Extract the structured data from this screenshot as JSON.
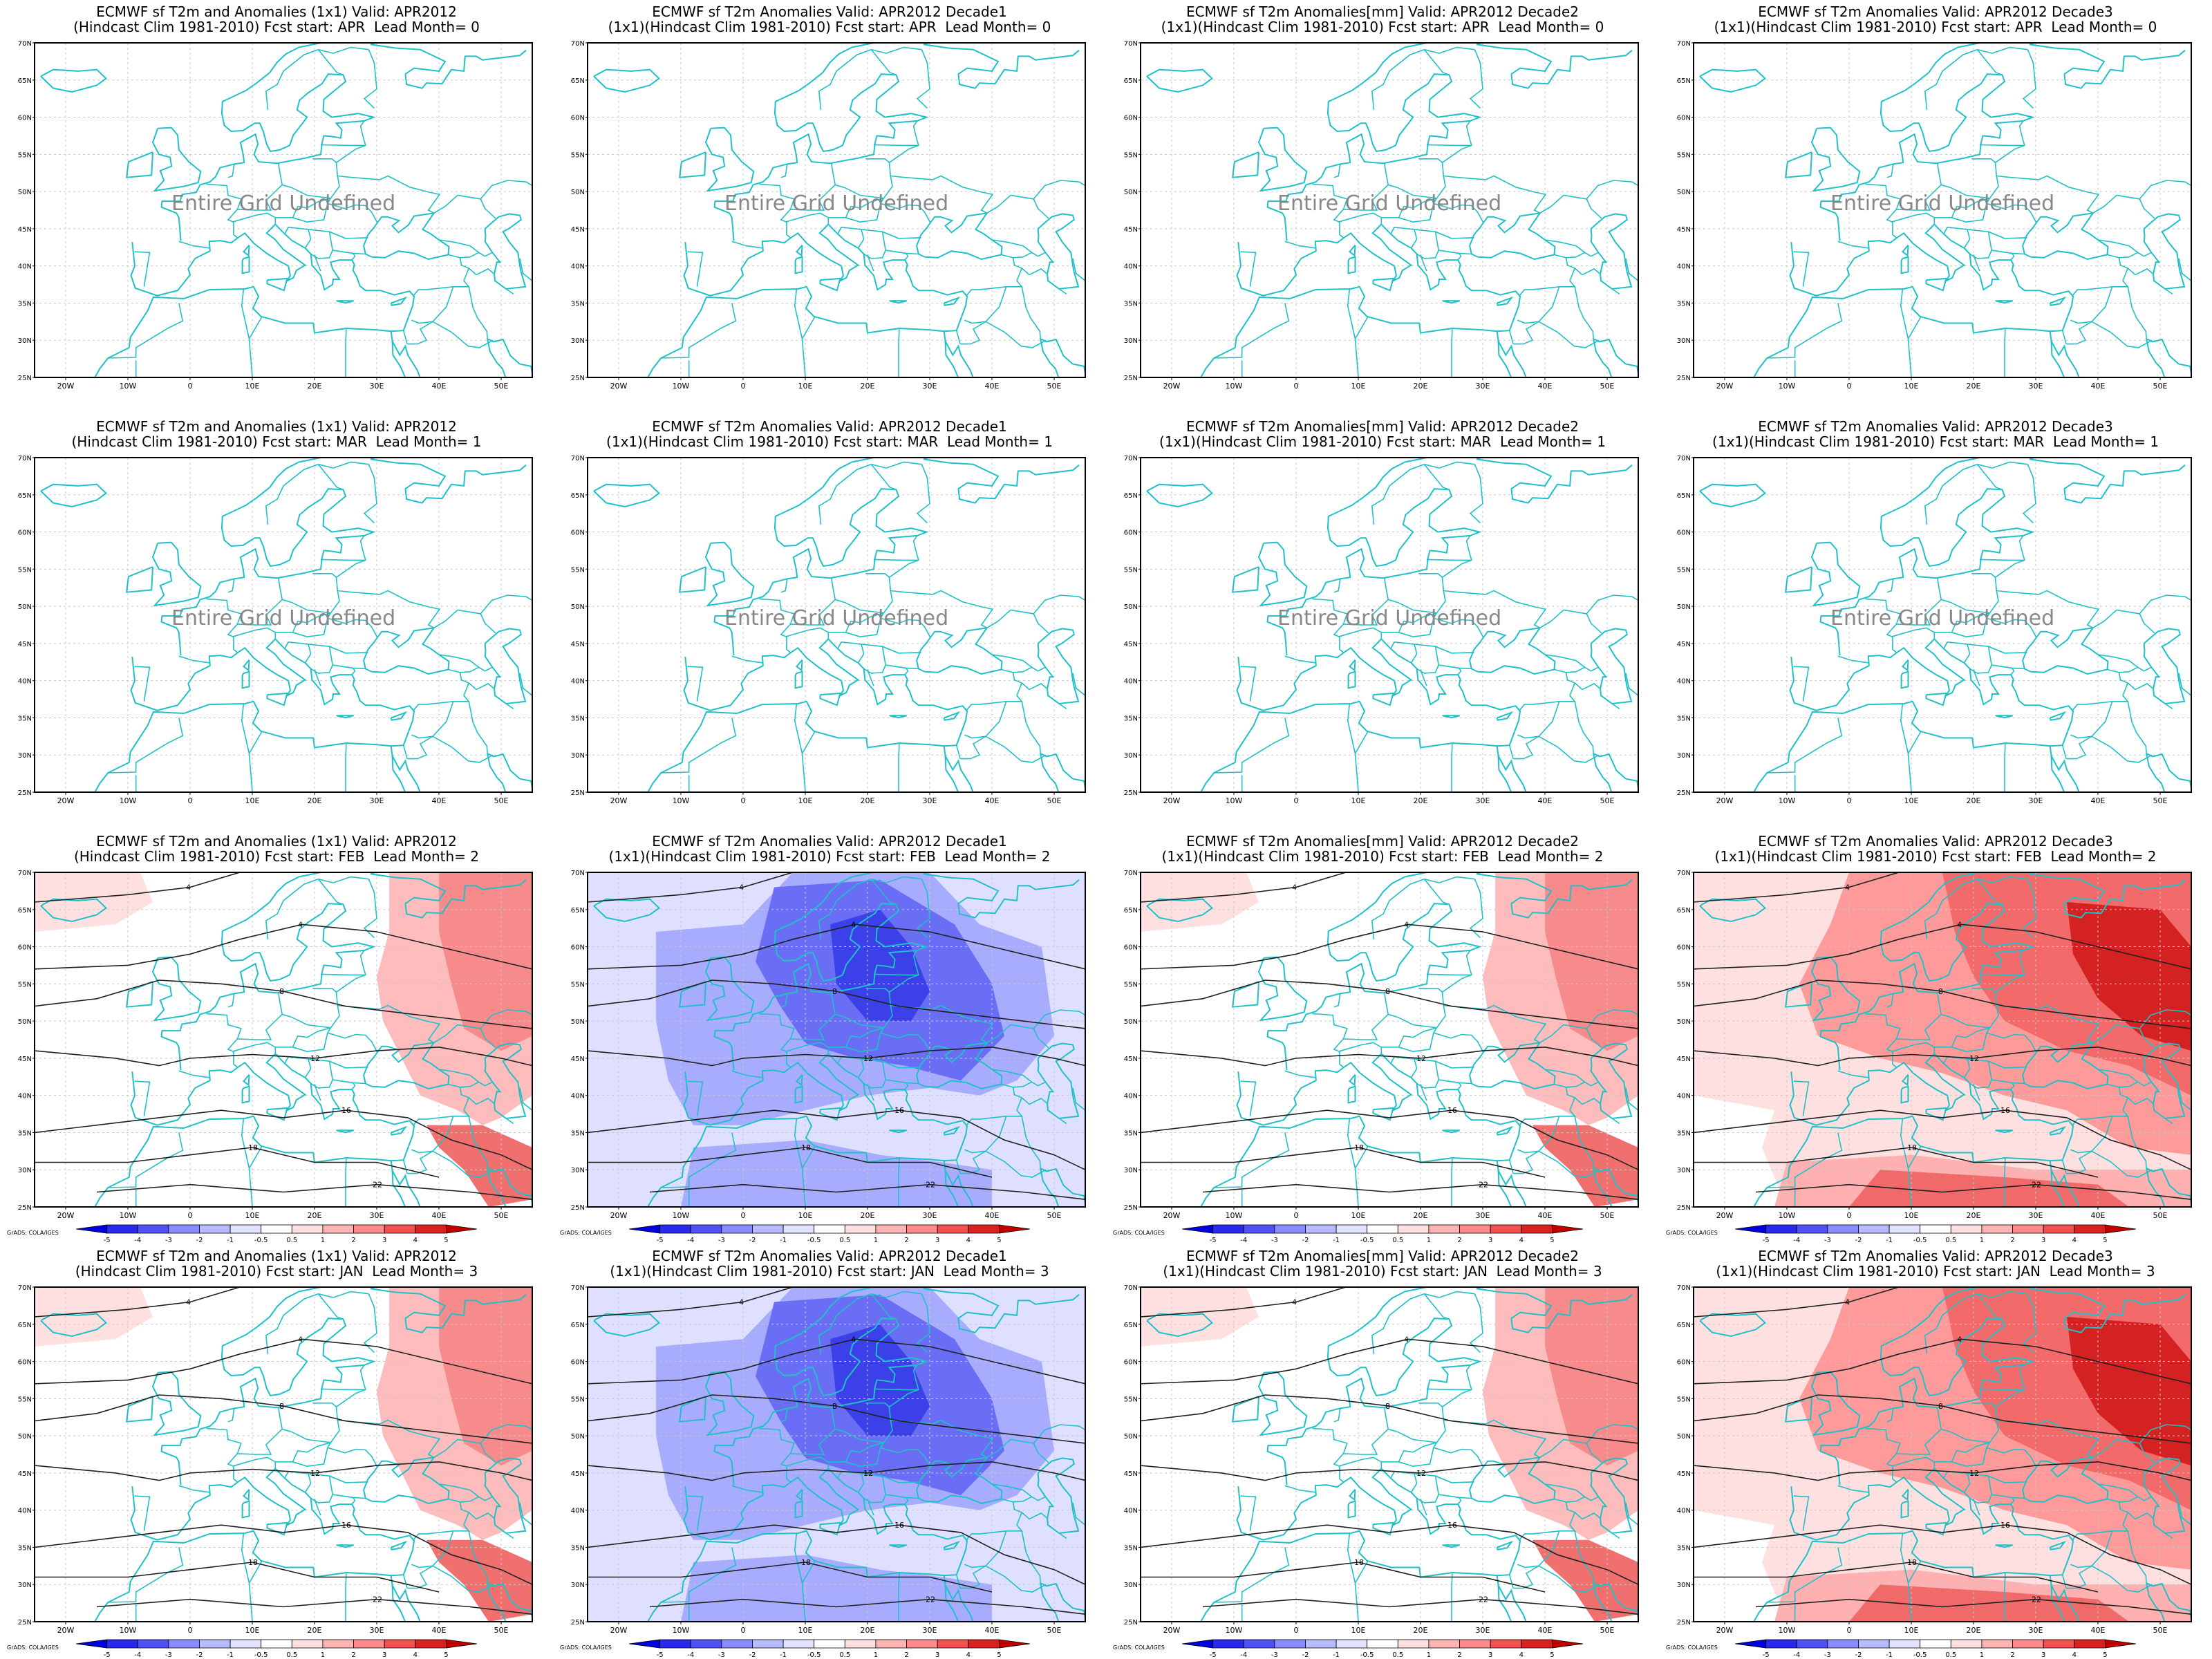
{
  "lat_labels": [
    "70N",
    "65N",
    "60N",
    "55N",
    "50N",
    "45N",
    "40N",
    "35N",
    "30N",
    "25N"
  ],
  "lon_labels": [
    "20W",
    "10W",
    "0",
    "10E",
    "20E",
    "30E",
    "40E",
    "50E"
  ],
  "undefined_text": "Entire Grid Undefined",
  "colorbar_labels": [
    "-5",
    "-4",
    "-3",
    "-2",
    "-1",
    "-0.5",
    "0.5",
    "1",
    "2",
    "3",
    "4",
    "5"
  ],
  "grads_tag": "GrADS: COLA/IGES",
  "colors": {
    "coast": "#20c0c8",
    "cold_strong": "#0000e0",
    "cold_light": "#dfe0ff",
    "warm_light": "#ffe0e0",
    "warm_strong": "#d00000"
  },
  "rows": [
    {
      "panels": [
        {
          "title1": "ECMWF sf T2m and Anomalies (1x1) Valid: APR2012",
          "title2": "(Hindcast Clim 1981-2010) Fcst start: APR  Lead Month= 0",
          "state": "undefined"
        },
        {
          "title1": "ECMWF sf T2m Anomalies Valid: APR2012 Decade1",
          "title2": "(1x1)(Hindcast Clim 1981-2010) Fcst start: APR  Lead Month= 0",
          "state": "undefined"
        },
        {
          "title1": "ECMWF sf T2m Anomalies[mm] Valid: APR2012 Decade2",
          "title2": "(1x1)(Hindcast Clim 1981-2010) Fcst start: APR  Lead Month= 0",
          "state": "undefined"
        },
        {
          "title1": "ECMWF sf T2m Anomalies Valid: APR2012 Decade3",
          "title2": "(1x1)(Hindcast Clim 1981-2010) Fcst start: APR  Lead Month= 0",
          "state": "undefined"
        }
      ]
    },
    {
      "panels": [
        {
          "title1": "ECMWF sf T2m and Anomalies (1x1) Valid: APR2012",
          "title2": "(Hindcast Clim 1981-2010) Fcst start: MAR  Lead Month= 1",
          "state": "undefined"
        },
        {
          "title1": "ECMWF sf T2m Anomalies Valid: APR2012 Decade1",
          "title2": "(1x1)(Hindcast Clim 1981-2010) Fcst start: MAR  Lead Month= 1",
          "state": "undefined"
        },
        {
          "title1": "ECMWF sf T2m Anomalies[mm] Valid: APR2012 Decade2",
          "title2": "(1x1)(Hindcast Clim 1981-2010) Fcst start: MAR  Lead Month= 1",
          "state": "undefined"
        },
        {
          "title1": "ECMWF sf T2m Anomalies Valid: APR2012 Decade3",
          "title2": "(1x1)(Hindcast Clim 1981-2010) Fcst start: MAR  Lead Month= 1",
          "state": "undefined"
        }
      ]
    },
    {
      "panels": [
        {
          "title1": "ECMWF sf T2m and Anomalies (1x1) Valid: APR2012",
          "title2": "(Hindcast Clim 1981-2010) Fcst start: FEB  Lead Month= 2",
          "state": "warm_east"
        },
        {
          "title1": "ECMWF sf T2m Anomalies Valid: APR2012 Decade1",
          "title2": "(1x1)(Hindcast Clim 1981-2010) Fcst start: FEB  Lead Month= 2",
          "state": "cold"
        },
        {
          "title1": "ECMWF sf T2m Anomalies[mm] Valid: APR2012 Decade2",
          "title2": "(1x1)(Hindcast Clim 1981-2010) Fcst start: FEB  Lead Month= 2",
          "state": "warm_east"
        },
        {
          "title1": "ECMWF sf T2m Anomalies Valid: APR2012 Decade3",
          "title2": "(1x1)(Hindcast Clim 1981-2010) Fcst start: FEB  Lead Month= 2",
          "state": "warm"
        }
      ]
    },
    {
      "panels": [
        {
          "title1": "ECMWF sf T2m and Anomalies (1x1) Valid: APR2012",
          "title2": "(Hindcast Clim 1981-2010) Fcst start: JAN  Lead Month= 3",
          "state": "warm_east"
        },
        {
          "title1": "ECMWF sf T2m Anomalies Valid: APR2012 Decade1",
          "title2": "(1x1)(Hindcast Clim 1981-2010) Fcst start: JAN  Lead Month= 3",
          "state": "cold"
        },
        {
          "title1": "ECMWF sf T2m Anomalies[mm] Valid: APR2012 Decade2",
          "title2": "(1x1)(Hindcast Clim 1981-2010) Fcst start: JAN  Lead Month= 3",
          "state": "warm_east"
        },
        {
          "title1": "ECMWF sf T2m Anomalies Valid: APR2012 Decade3",
          "title2": "(1x1)(Hindcast Clim 1981-2010) Fcst start: JAN  Lead Month= 3",
          "state": "warm"
        }
      ]
    }
  ]
}
